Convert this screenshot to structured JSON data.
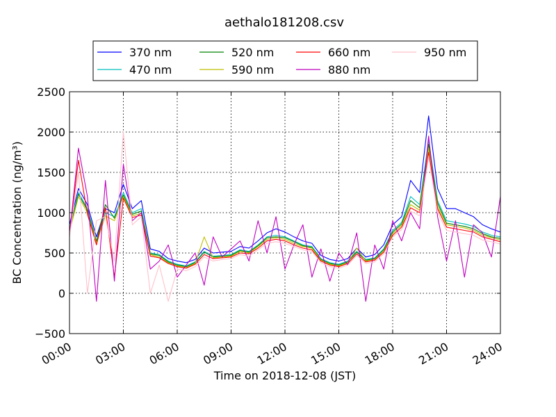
{
  "chart_data": {
    "type": "line",
    "title": "aethalo181208.csv",
    "xlabel": "Time on 2018-12-08 (JST)",
    "ylabel": "BC Concentration (ng/m³)",
    "xlim": [
      0,
      24
    ],
    "ylim": [
      -500,
      2500
    ],
    "grid": true,
    "legend_placement": "top",
    "x_ticks": [
      {
        "value": 0,
        "label": "00:00"
      },
      {
        "value": 3,
        "label": "03:00"
      },
      {
        "value": 6,
        "label": "06:00"
      },
      {
        "value": 9,
        "label": "09:00"
      },
      {
        "value": 12,
        "label": "12:00"
      },
      {
        "value": 15,
        "label": "15:00"
      },
      {
        "value": 18,
        "label": "18:00"
      },
      {
        "value": 21,
        "label": "21:00"
      },
      {
        "value": 24,
        "label": "24:00"
      }
    ],
    "y_ticks": [
      {
        "value": -500,
        "label": "−500"
      },
      {
        "value": 0,
        "label": "0"
      },
      {
        "value": 500,
        "label": "500"
      },
      {
        "value": 1000,
        "label": "1000"
      },
      {
        "value": 1500,
        "label": "1500"
      },
      {
        "value": 2000,
        "label": "2000"
      },
      {
        "value": 2500,
        "label": "2500"
      }
    ],
    "x": [
      0,
      0.5,
      1,
      1.5,
      2,
      2.5,
      3,
      3.5,
      4,
      4.5,
      5,
      5.5,
      6,
      6.5,
      7,
      7.5,
      8,
      8.5,
      9,
      9.5,
      10,
      10.5,
      11,
      11.5,
      12,
      12.5,
      13,
      13.5,
      14,
      14.5,
      15,
      15.5,
      16,
      16.5,
      17,
      17.5,
      18,
      18.5,
      19,
      19.5,
      20,
      20.5,
      21,
      21.5,
      22,
      22.5,
      23,
      23.5,
      24
    ],
    "series": [
      {
        "name": "370 nm",
        "color": "#0000ff",
        "values": [
          850,
          1300,
          1100,
          700,
          1050,
          1000,
          1350,
          1050,
          1150,
          550,
          520,
          430,
          400,
          380,
          420,
          560,
          500,
          510,
          520,
          580,
          560,
          650,
          750,
          800,
          760,
          700,
          650,
          620,
          470,
          420,
          400,
          430,
          560,
          450,
          480,
          600,
          850,
          950,
          1400,
          1250,
          2200,
          1300,
          1050,
          1050,
          1000,
          950,
          850,
          800,
          760
        ]
      },
      {
        "name": "470 nm",
        "color": "#00bfbf",
        "values": [
          800,
          1250,
          1050,
          650,
          1000,
          950,
          1250,
          1000,
          1050,
          500,
          480,
          400,
          360,
          340,
          390,
          520,
          460,
          470,
          480,
          540,
          520,
          600,
          700,
          720,
          700,
          650,
          600,
          580,
          430,
          380,
          360,
          400,
          520,
          420,
          440,
          550,
          780,
          880,
          1200,
          1100,
          1900,
          1150,
          900,
          880,
          860,
          830,
          760,
          720,
          700
        ]
      },
      {
        "name": "520 nm",
        "color": "#008000",
        "values": [
          780,
          1230,
          1030,
          640,
          1100,
          930,
          1220,
          980,
          1020,
          490,
          470,
          390,
          350,
          330,
          380,
          510,
          450,
          460,
          470,
          530,
          510,
          590,
          690,
          700,
          690,
          640,
          590,
          570,
          420,
          370,
          350,
          390,
          510,
          410,
          430,
          540,
          760,
          860,
          1150,
          1060,
          1850,
          1120,
          870,
          850,
          830,
          800,
          740,
          700,
          680
        ]
      },
      {
        "name": "590 nm",
        "color": "#bfbf00",
        "values": [
          760,
          1200,
          1000,
          620,
          960,
          900,
          1200,
          960,
          990,
          480,
          450,
          380,
          340,
          320,
          370,
          700,
          440,
          450,
          460,
          520,
          500,
          580,
          670,
          690,
          670,
          620,
          580,
          560,
          410,
          360,
          340,
          380,
          560,
          400,
          420,
          520,
          740,
          840,
          1100,
          1030,
          1800,
          1080,
          850,
          830,
          810,
          780,
          720,
          690,
          660
        ]
      },
      {
        "name": "660 nm",
        "color": "#ff0000",
        "values": [
          740,
          1650,
          980,
          600,
          1060,
          200,
          1180,
          940,
          970,
          460,
          440,
          370,
          330,
          310,
          360,
          480,
          430,
          440,
          450,
          500,
          490,
          560,
          650,
          670,
          650,
          600,
          560,
          540,
          400,
          350,
          330,
          370,
          490,
          390,
          410,
          510,
          720,
          820,
          1060,
          1000,
          1750,
          1050,
          820,
          800,
          780,
          760,
          700,
          670,
          640
        ]
      },
      {
        "name": "880 nm",
        "color": "#bf00bf",
        "values": [
          720,
          1800,
          1200,
          -100,
          1400,
          150,
          1600,
          900,
          1000,
          300,
          400,
          600,
          200,
          350,
          500,
          100,
          700,
          450,
          550,
          650,
          400,
          900,
          500,
          950,
          300,
          600,
          850,
          200,
          550,
          150,
          500,
          350,
          750,
          -100,
          600,
          300,
          900,
          650,
          1000,
          800,
          1950,
          950,
          400,
          900,
          200,
          850,
          750,
          450,
          1200
        ]
      },
      {
        "name": "950 nm",
        "color": "#ffc0cb",
        "values": [
          700,
          1500,
          0,
          900,
          950,
          400,
          2000,
          850,
          950,
          0,
          350,
          -100,
          300,
          280,
          330,
          450,
          400,
          420,
          430,
          480,
          460,
          540,
          620,
          640,
          620,
          580,
          540,
          520,
          380,
          330,
          310,
          350,
          470,
          370,
          390,
          490,
          700,
          790,
          1020,
          960,
          1700,
          1000,
          780,
          760,
          740,
          720,
          660,
          640,
          610
        ]
      }
    ]
  }
}
